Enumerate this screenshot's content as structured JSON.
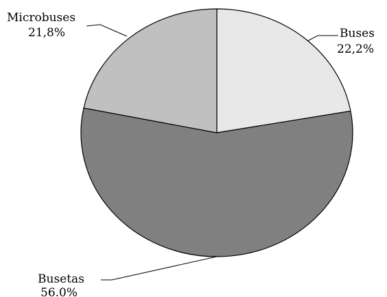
{
  "chart_data": {
    "type": "pie",
    "title": "",
    "slices": [
      {
        "name": "Buses",
        "value": 22.2,
        "value_label": "22,2%",
        "color": "#e8e8e8"
      },
      {
        "name": "Busetas",
        "value": 56.0,
        "value_label": "56.0%",
        "color": "#808080"
      },
      {
        "name": "Microbuses",
        "value": 21.8,
        "value_label": "21,8%",
        "color": "#c0c0c0"
      }
    ],
    "start_angle": "12 o'clock",
    "direction": "clockwise",
    "outline_color": "#000000",
    "legend": "none"
  }
}
